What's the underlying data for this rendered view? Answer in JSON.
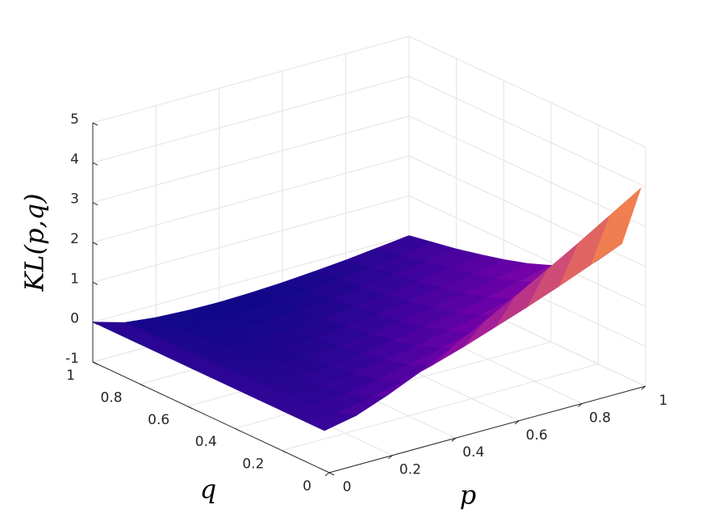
{
  "chart_data": {
    "type": "surface",
    "xlabel": "p",
    "ylabel": "q",
    "zlabel": "KL(p,q)",
    "x": [
      0,
      0.1,
      0.2,
      0.3,
      0.4,
      0.5,
      0.6,
      0.7,
      0.8,
      0.9,
      1
    ],
    "y": [
      0.02,
      0.1,
      0.2,
      0.3,
      0.4,
      0.5,
      0.6,
      0.7,
      0.8,
      0.9,
      1
    ],
    "z": [
      [
        0,
        0.16,
        0.46,
        0.81,
        1.2,
        1.61,
        2.04,
        2.49,
        2.95,
        3.43,
        3.91
      ],
      [
        0,
        0,
        0.14,
        0.33,
        0.55,
        0.8,
        1.08,
        1.36,
        1.66,
        1.98,
        2.3
      ],
      [
        0,
        -0.07,
        0,
        0.12,
        0.28,
        0.46,
        0.66,
        0.88,
        1.11,
        1.35,
        1.61
      ],
      [
        0,
        -0.11,
        -0.08,
        0,
        0.12,
        0.26,
        0.42,
        0.59,
        0.78,
        0.99,
        1.2
      ],
      [
        0,
        -0.14,
        -0.14,
        -0.09,
        0,
        0.11,
        0.24,
        0.39,
        0.55,
        0.73,
        0.92
      ],
      [
        0,
        -0.16,
        -0.18,
        -0.15,
        -0.09,
        0,
        0.11,
        0.24,
        0.38,
        0.53,
        0.69
      ],
      [
        0,
        -0.18,
        -0.22,
        -0.21,
        -0.16,
        -0.09,
        0,
        0.11,
        0.23,
        0.36,
        0.51
      ],
      [
        0,
        -0.19,
        -0.25,
        -0.25,
        -0.22,
        -0.17,
        -0.09,
        0,
        0.11,
        0.23,
        0.36
      ],
      [
        0,
        -0.21,
        -0.28,
        -0.29,
        -0.28,
        -0.24,
        -0.17,
        -0.09,
        0,
        0.11,
        0.22
      ],
      [
        0,
        -0.22,
        -0.3,
        -0.33,
        -0.32,
        -0.29,
        -0.24,
        -0.18,
        -0.09,
        0,
        0.11
      ],
      [
        0,
        -0.23,
        -0.32,
        -0.36,
        -0.37,
        -0.35,
        -0.31,
        -0.25,
        -0.18,
        -0.09,
        0
      ]
    ],
    "xlim": [
      0,
      1
    ],
    "ylim": [
      0,
      1
    ],
    "zlim": [
      -1,
      5
    ],
    "xticks": [
      0,
      0.2,
      0.4,
      0.6,
      0.8,
      1
    ],
    "yticks": [
      0,
      0.2,
      0.4,
      0.6,
      0.8,
      1
    ],
    "zticks": [
      -1,
      0,
      1,
      2,
      3,
      4,
      5
    ],
    "grid": true,
    "colormap": [
      "#0d0887",
      "#46039f",
      "#7201a8",
      "#9c179e",
      "#bd3786",
      "#d8576b",
      "#ed7953",
      "#fb9f3a",
      "#fdc328"
    ]
  }
}
